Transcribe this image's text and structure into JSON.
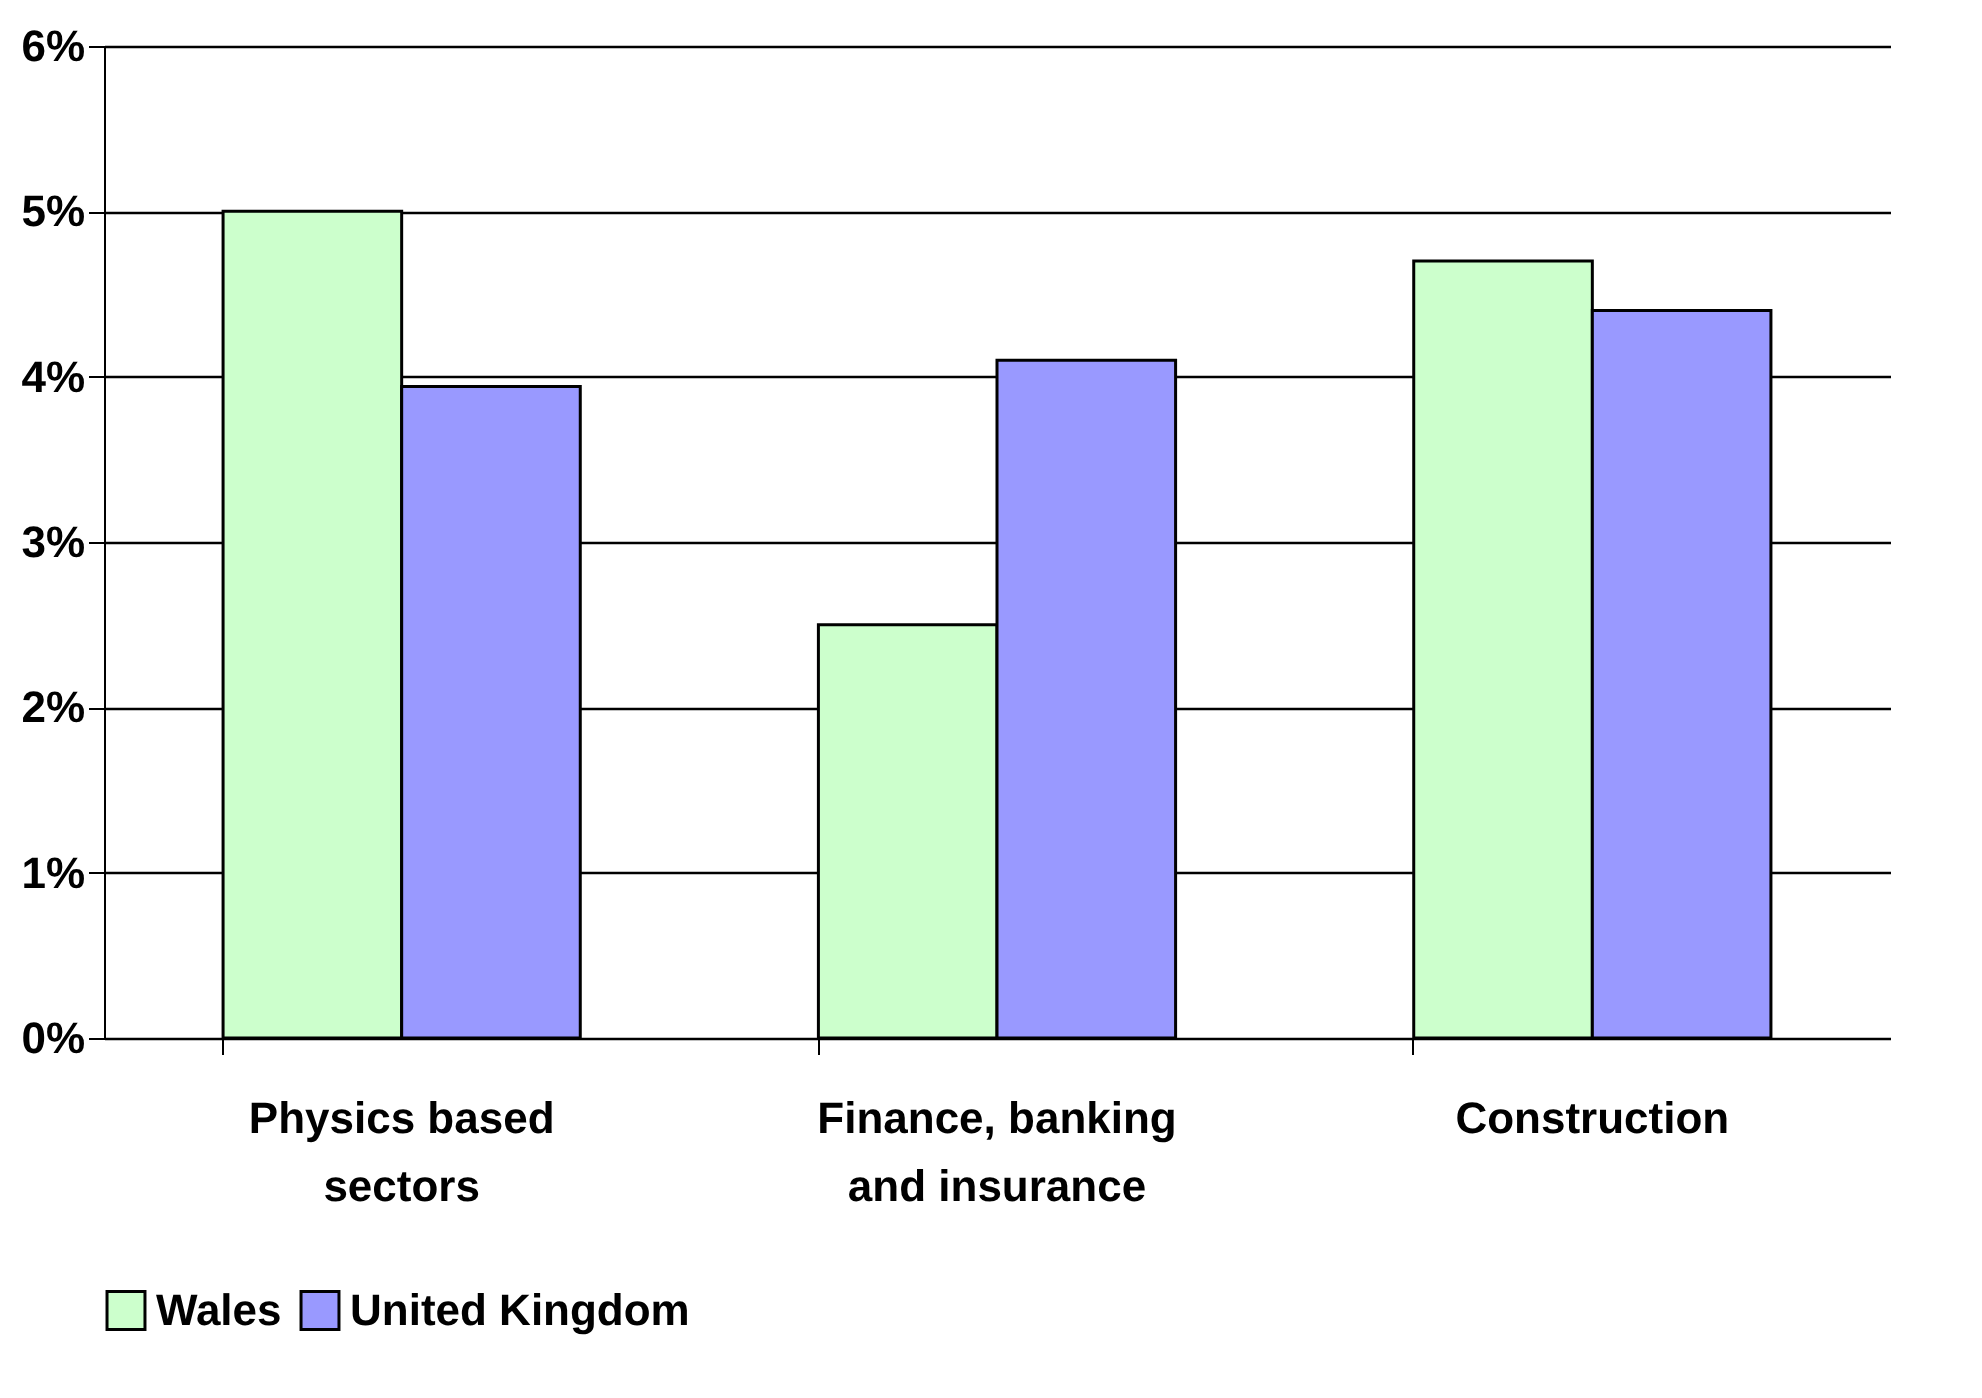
{
  "chart_data": {
    "type": "bar",
    "categories": [
      "Physics based sectors",
      "Finance, banking and insurance",
      "Construction"
    ],
    "series": [
      {
        "name": "Wales",
        "color": "#ccffcc",
        "values": [
          5.0,
          2.5,
          4.7
        ]
      },
      {
        "name": "United Kingdom",
        "color": "#9999ff",
        "values": [
          3.94,
          4.1,
          4.4
        ]
      }
    ],
    "ylim": [
      0,
      6
    ],
    "yticks": [
      {
        "value": 0,
        "label": "0%"
      },
      {
        "value": 1,
        "label": "1%"
      },
      {
        "value": 2,
        "label": "2%"
      },
      {
        "value": 3,
        "label": "3%"
      },
      {
        "value": 4,
        "label": "4%"
      },
      {
        "value": 5,
        "label": "5%"
      },
      {
        "value": 6,
        "label": "6%"
      }
    ],
    "grid": "y",
    "legend": "bottom"
  }
}
